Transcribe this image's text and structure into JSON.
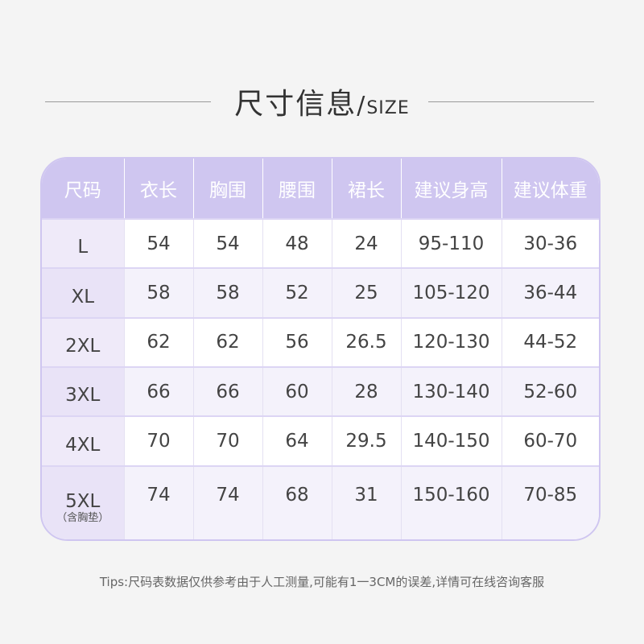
{
  "title": {
    "cn": "尺寸信息",
    "separator": "/",
    "en": "SIZE"
  },
  "table": {
    "headers": [
      "尺码",
      "衣长",
      "胸围",
      "腰围",
      "裙长",
      "建议身高",
      "建议体重"
    ],
    "rows": [
      {
        "size": "L",
        "note": "",
        "values": [
          "54",
          "54",
          "48",
          "24",
          "95-110",
          "30-36"
        ]
      },
      {
        "size": "XL",
        "note": "",
        "values": [
          "58",
          "58",
          "52",
          "25",
          "105-120",
          "36-44"
        ]
      },
      {
        "size": "2XL",
        "note": "",
        "values": [
          "62",
          "62",
          "56",
          "26.5",
          "120-130",
          "44-52"
        ]
      },
      {
        "size": "3XL",
        "note": "",
        "values": [
          "66",
          "66",
          "60",
          "28",
          "130-140",
          "52-60"
        ]
      },
      {
        "size": "4XL",
        "note": "",
        "values": [
          "70",
          "70",
          "64",
          "29.5",
          "140-150",
          "60-70"
        ]
      },
      {
        "size": "5XL",
        "note": "（含胸垫）",
        "values": [
          "74",
          "74",
          "68",
          "31",
          "150-160",
          "70-85"
        ]
      }
    ]
  },
  "tips": "Tips:尺码表数据仅供参考由于人工测量,可能有1一3CM的误差,详情可在线咨询客服",
  "colors": {
    "header": "#cfc6f0",
    "row_alt": "#f4f2fb",
    "size_col": "#efeaf9"
  }
}
